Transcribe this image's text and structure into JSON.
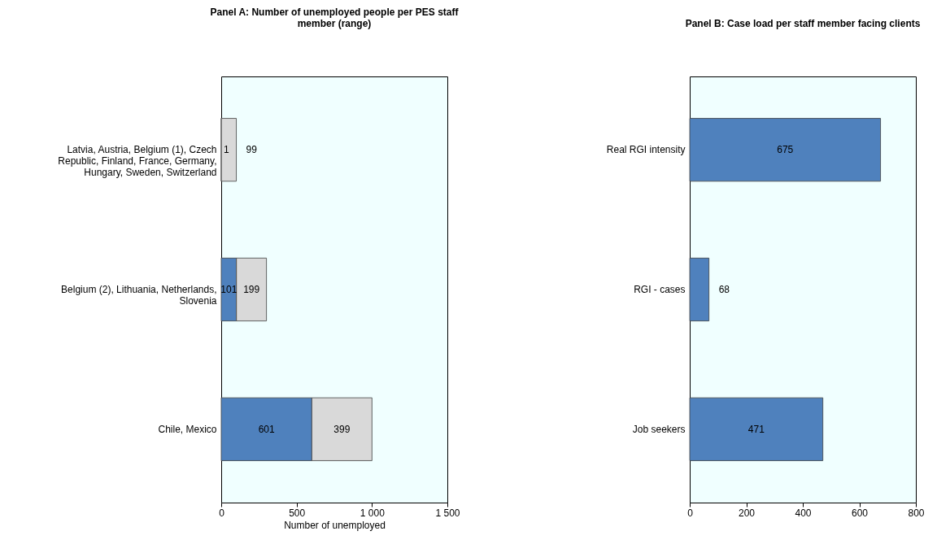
{
  "chart_data": [
    {
      "type": "bar",
      "orientation": "horizontal",
      "stacked": true,
      "title": "Panel A: Number of unemployed people per PES staff member (range)",
      "xlabel": "Number of unemployed",
      "categories": [
        "Latvia, Austria, Belgium (1), Czech Republic, Finland, France, Germany, Hungary, Sweden, Switzerland",
        "Belgium (2), Lithuania, Netherlands, Slovenia",
        "Chile, Mexico"
      ],
      "series": [
        {
          "color": "#4f81bd",
          "values": [
            1,
            101,
            601
          ]
        },
        {
          "color": "#d9d9d9",
          "values": [
            99,
            199,
            399
          ]
        }
      ],
      "xlim": [
        0,
        1500
      ],
      "xticks": [
        0,
        500,
        {
          "value": 1000,
          "label": "1 000"
        },
        {
          "value": 1500,
          "label": "1 500"
        }
      ],
      "data_labels": true,
      "grid": false
    },
    {
      "type": "bar",
      "orientation": "horizontal",
      "title": "Panel B: Case load per staff member facing clients",
      "categories": [
        "Real RGI intensity",
        "RGI - cases",
        "Job seekers"
      ],
      "series": [
        {
          "color": "#4f81bd",
          "values": [
            675,
            68,
            471
          ]
        }
      ],
      "xlim": [
        0,
        800
      ],
      "xticks": [
        0,
        200,
        400,
        600,
        800
      ],
      "data_labels": true,
      "grid": false
    }
  ]
}
